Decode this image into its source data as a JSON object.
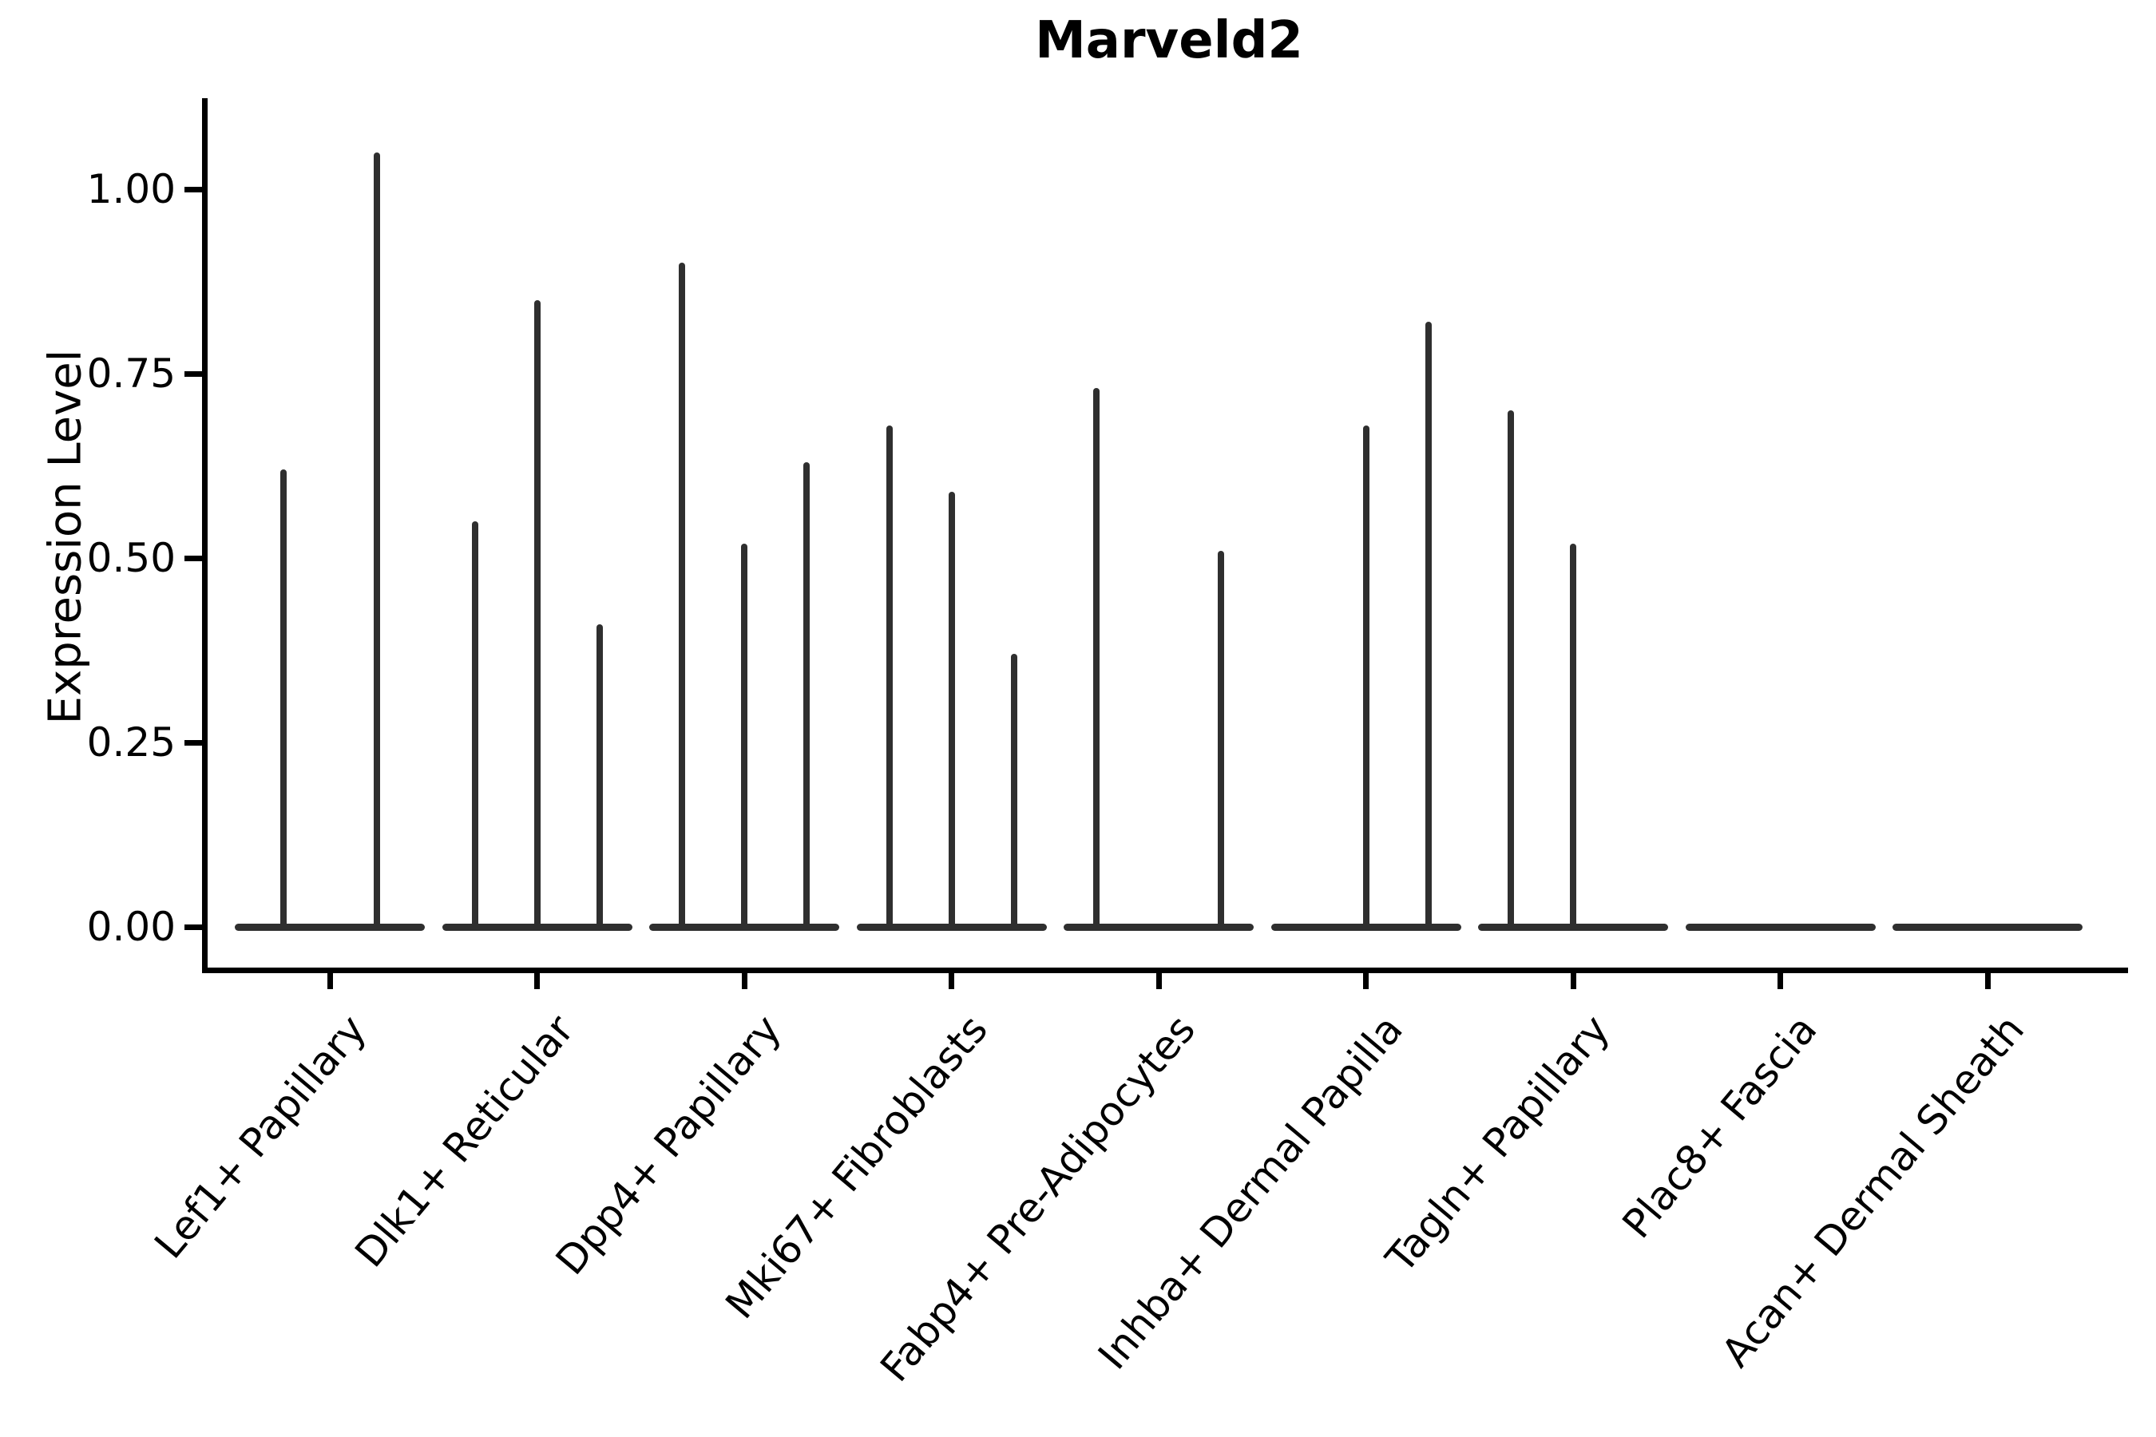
{
  "title": "Marveld2",
  "y_axis": {
    "label": "Expression Level",
    "ticks": [
      {
        "label": "1.00",
        "value": 1.0
      },
      {
        "label": "0.75",
        "value": 0.75
      },
      {
        "label": "0.50",
        "value": 0.5
      },
      {
        "label": "0.25",
        "value": 0.25
      },
      {
        "label": "0.00",
        "value": 0.0
      }
    ]
  },
  "colors": {
    "violin_line": "#2f2f2f",
    "axis": "#000000",
    "background": "#ffffff"
  },
  "chart_data": {
    "type": "violin",
    "title": "Marveld2",
    "xlabel": "",
    "ylabel": "Expression Level",
    "ylim": [
      0,
      1.1
    ],
    "grid": false,
    "legend": false,
    "description": "Needle-like violin plot of Marveld2 expression per fibroblast cluster; each category holds sub-violins whose bodies sit flat at 0 with thin spikes up to the max expression.",
    "categories": [
      "Lef1+ Papillary",
      "Dlk1+ Reticular",
      "Dpp4+ Papillary",
      "Mki67+ Fibroblasts",
      "Fabp4+ Pre-Adipocytes",
      "Inhba+ Dermal Papilla",
      "Tagln+ Papillary",
      "Plac8+ Fascia",
      "Acan+ Dermal Sheath"
    ],
    "violins": [
      {
        "label": "Lef1+ Papillary",
        "n_groups": 2,
        "spikes": [
          {
            "group": 1,
            "max": 0.62
          },
          {
            "group": 2,
            "max": 1.05
          }
        ]
      },
      {
        "label": "Dlk1+ Reticular",
        "n_groups": 3,
        "spikes": [
          {
            "group": 1,
            "max": 0.55
          },
          {
            "group": 2,
            "max": 0.85
          },
          {
            "group": 3,
            "max": 0.41
          }
        ]
      },
      {
        "label": "Dpp4+ Papillary",
        "n_groups": 3,
        "spikes": [
          {
            "group": 1,
            "max": 0.9
          },
          {
            "group": 2,
            "max": 0.52
          },
          {
            "group": 3,
            "max": 0.63
          }
        ]
      },
      {
        "label": "Mki67+ Fibroblasts",
        "n_groups": 3,
        "spikes": [
          {
            "group": 1,
            "max": 0.68
          },
          {
            "group": 2,
            "max": 0.59
          },
          {
            "group": 3,
            "max": 0.37
          }
        ]
      },
      {
        "label": "Fabp4+ Pre-Adipocytes",
        "n_groups": 3,
        "spikes": [
          {
            "group": 1,
            "max": 0.73
          },
          {
            "group": 3,
            "max": 0.51
          }
        ]
      },
      {
        "label": "Inhba+ Dermal Papilla",
        "n_groups": 3,
        "spikes": [
          {
            "group": 2,
            "max": 0.68
          },
          {
            "group": 3,
            "max": 0.82
          }
        ]
      },
      {
        "label": "Tagln+ Papillary",
        "n_groups": 3,
        "spikes": [
          {
            "group": 1,
            "max": 0.7
          },
          {
            "group": 2,
            "max": 0.52
          }
        ]
      },
      {
        "label": "Plac8+ Fascia",
        "n_groups": 3,
        "spikes": []
      },
      {
        "label": "Acan+ Dermal Sheath",
        "n_groups": 3,
        "spikes": []
      }
    ]
  }
}
